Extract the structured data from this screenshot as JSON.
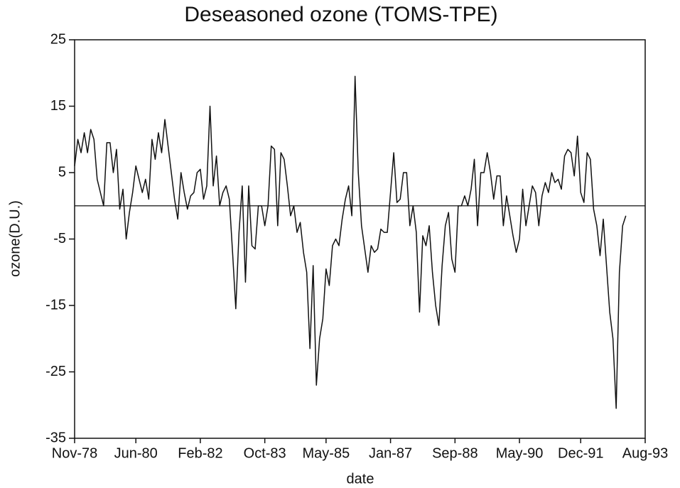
{
  "chart_data": {
    "type": "line",
    "title": "Deseasoned ozone (TOMS-TPE)",
    "x_label": "date",
    "y_label": "ozone(D.U.)",
    "categories": [
      "Nov-78",
      null,
      null,
      null,
      null,
      null,
      null,
      null,
      null,
      null,
      null,
      null,
      null,
      null,
      null,
      null,
      null,
      null,
      null,
      "Jun-80",
      null,
      null,
      null,
      null,
      null,
      null,
      null,
      null,
      null,
      null,
      null,
      null,
      null,
      null,
      null,
      null,
      null,
      null,
      null,
      "Feb-82",
      null,
      null,
      null,
      null,
      null,
      null,
      null,
      null,
      null,
      null,
      null,
      null,
      null,
      null,
      null,
      null,
      null,
      null,
      null,
      "Oct-83",
      null,
      null,
      null,
      null,
      null,
      null,
      null,
      null,
      null,
      null,
      null,
      null,
      null,
      null,
      null,
      null,
      null,
      null,
      "May-85",
      null,
      null,
      null,
      null,
      null,
      null,
      null,
      null,
      null,
      null,
      null,
      null,
      null,
      null,
      null,
      null,
      null,
      null,
      null,
      "Jan-87",
      null,
      null,
      null,
      null,
      null,
      null,
      null,
      null,
      null,
      null,
      null,
      null,
      null,
      null,
      null,
      null,
      null,
      null,
      null,
      "Sep-88",
      null,
      null,
      null,
      null,
      null,
      null,
      null,
      null,
      null,
      null,
      null,
      null,
      null,
      null,
      null,
      null,
      null,
      null,
      null,
      "May-90",
      null,
      null,
      null,
      null,
      null,
      null,
      null,
      null,
      null,
      null,
      null,
      null,
      null,
      null,
      null,
      null,
      null,
      null,
      "Dec-91",
      null,
      null,
      null,
      null,
      null,
      null,
      null,
      null,
      null,
      null,
      null,
      null,
      null,
      null,
      null,
      null,
      null,
      null,
      null,
      "Aug-93"
    ],
    "series": [
      {
        "name": "ozone",
        "color": "#111111",
        "values": [
          6,
          10,
          8,
          11,
          8,
          11.5,
          10,
          4,
          2,
          0,
          9.5,
          9.5,
          5,
          8.5,
          -0.5,
          2.5,
          -5,
          -1,
          2,
          6,
          4,
          2,
          4,
          1,
          10,
          7,
          11,
          8,
          13,
          9,
          5,
          1,
          -2,
          5,
          2,
          -0.5,
          1.5,
          2,
          5,
          5.5,
          1,
          3,
          15,
          3,
          7.5,
          0,
          2,
          3,
          1,
          -7,
          -15.5,
          -4,
          3,
          -11.5,
          3,
          -6,
          -6.5,
          0,
          0,
          -3,
          0,
          9,
          8.5,
          -3,
          8,
          7,
          3,
          -1.5,
          0,
          -4,
          -2.5,
          -7,
          -10,
          -21.5,
          -9,
          -27,
          -20,
          -17,
          -9.5,
          -12,
          -6,
          -5,
          -6,
          -2,
          1,
          3,
          -1.5,
          19.5,
          5,
          -3,
          -6.5,
          -10,
          -6,
          -7,
          -6.5,
          -3.5,
          -4,
          -4,
          2,
          8,
          0.5,
          1,
          5,
          5,
          -3,
          0,
          -4,
          -16,
          -4.5,
          -6,
          -3,
          -10,
          -15,
          -18,
          -9,
          -3,
          -1,
          -8,
          -10,
          0,
          0,
          1.5,
          0,
          2.5,
          7,
          -3,
          5,
          5,
          8,
          5,
          1,
          4.5,
          4.5,
          -3,
          1.5,
          -1.5,
          -4.5,
          -7,
          -5,
          2.5,
          -3,
          0,
          3,
          2,
          -3,
          1.5,
          3.5,
          2,
          5,
          3.5,
          4,
          2.5,
          7.5,
          8.5,
          8,
          4.5,
          10.5,
          2,
          0.5,
          8,
          7,
          -0.5,
          -3,
          -7.5,
          -2,
          -9,
          -16,
          -20,
          -30.5,
          -10,
          -3,
          -1.5,
          null,
          null,
          null,
          null,
          null,
          null
        ]
      }
    ],
    "ylim": [
      -35,
      25
    ],
    "yticks": [
      -35,
      -25,
      -15,
      -5,
      5,
      15,
      25
    ],
    "hline": 0
  }
}
